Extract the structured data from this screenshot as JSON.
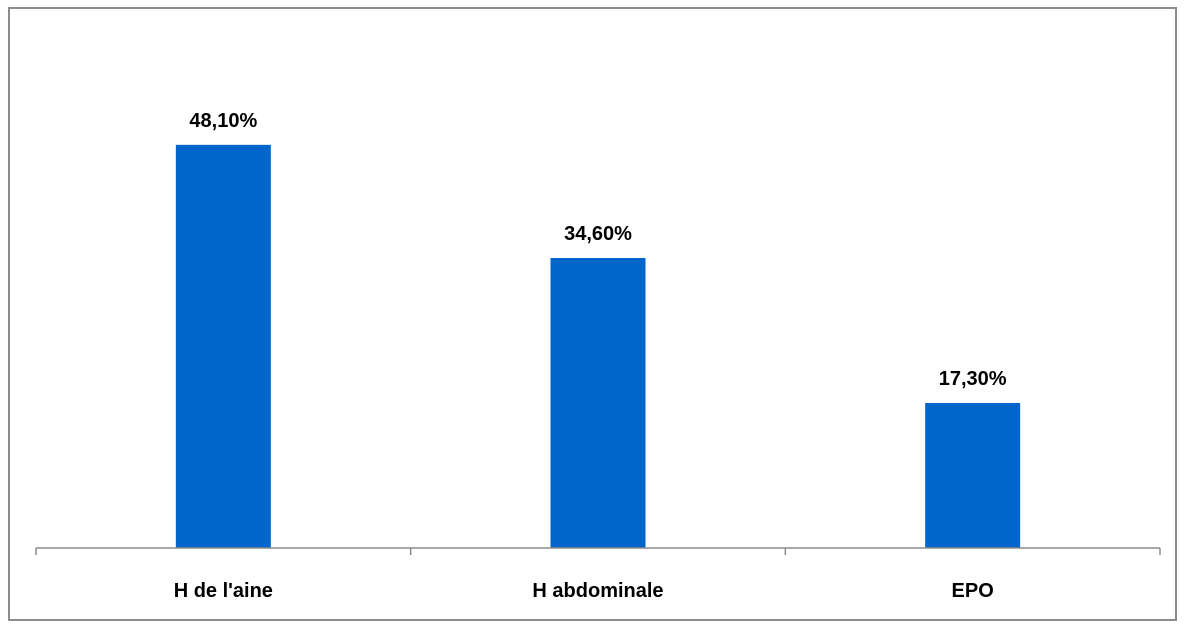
{
  "chart_data": {
    "type": "bar",
    "categories": [
      "H de l'aine",
      "H abdominale",
      "EPO"
    ],
    "values": [
      48.1,
      34.6,
      17.3
    ],
    "data_labels": [
      "48,10%",
      "34,60%",
      "17,30%"
    ],
    "title": "",
    "xlabel": "",
    "ylabel": "",
    "ylim": [
      0,
      55
    ],
    "grid": false,
    "legend": "none",
    "colors": {
      "bar": "#0066cc",
      "axis": "#8c8c8c",
      "frame": "#8c8c8c",
      "text": "#000000"
    }
  }
}
